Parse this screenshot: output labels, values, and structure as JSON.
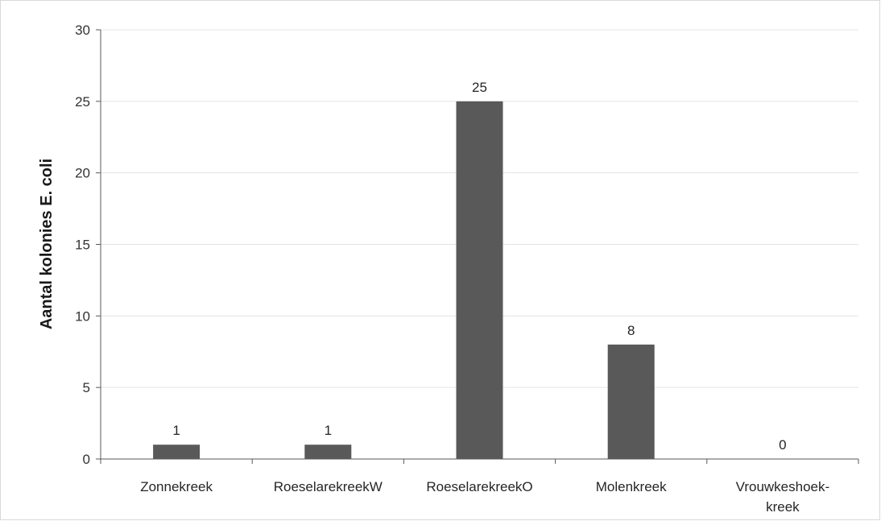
{
  "chart_data": {
    "type": "bar",
    "categories": [
      [
        "Zonnekreek"
      ],
      [
        "RoeselarekreekW"
      ],
      [
        "RoeselarekreekO"
      ],
      [
        "Molenkreek"
      ],
      [
        "Vrouwkeshoek-",
        "kreek"
      ]
    ],
    "values": [
      1,
      1,
      25,
      8,
      0
    ],
    "data_labels": [
      "1",
      "1",
      "25",
      "8",
      "0"
    ],
    "title": "",
    "xlabel": "",
    "ylabel": "Aantal kolonies E. coli",
    "ylim": [
      0,
      30
    ],
    "yticks": [
      0,
      5,
      10,
      15,
      20,
      25,
      30
    ],
    "grid": true,
    "legend": "none",
    "bar_color": "#595959",
    "grid_color": "#e3e3e3",
    "axis_color": "#595959"
  }
}
